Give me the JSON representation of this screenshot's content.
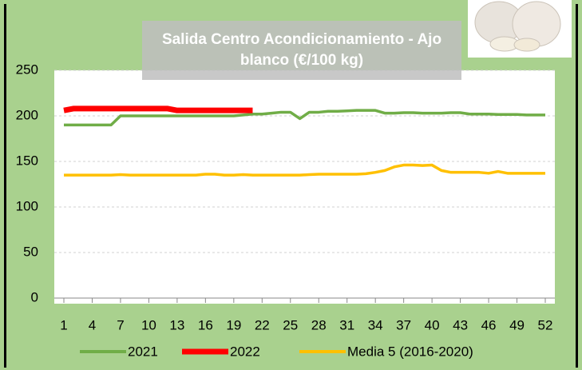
{
  "chart_data": {
    "type": "line",
    "title": "Salida Centro Acondicionamiento - Ajo blanco (€/100 kg)",
    "x": [
      1,
      2,
      3,
      4,
      5,
      6,
      7,
      8,
      9,
      10,
      11,
      12,
      13,
      14,
      15,
      16,
      17,
      18,
      19,
      20,
      21,
      22,
      23,
      24,
      25,
      26,
      27,
      28,
      29,
      30,
      31,
      32,
      33,
      34,
      35,
      36,
      37,
      38,
      39,
      40,
      41,
      42,
      43,
      44,
      45,
      46,
      47,
      48,
      49,
      50,
      51,
      52
    ],
    "xlim": [
      1,
      52
    ],
    "xticks": [
      1,
      4,
      7,
      10,
      13,
      16,
      19,
      22,
      25,
      28,
      31,
      34,
      37,
      40,
      43,
      46,
      49,
      52
    ],
    "ylim": [
      0,
      250
    ],
    "yticks": [
      0,
      50,
      100,
      150,
      200,
      250
    ],
    "grid": true,
    "series": [
      {
        "name": "2021",
        "color": "#70ad47",
        "values": [
          190,
          190,
          190,
          190,
          190,
          190,
          200,
          200,
          200,
          200,
          200,
          200,
          200,
          200,
          200,
          200,
          200,
          200,
          200,
          201,
          202,
          202,
          203,
          204,
          204,
          197,
          204,
          204,
          205,
          205,
          205.5,
          206,
          206,
          206,
          203,
          203,
          203.5,
          203.5,
          203,
          203,
          203,
          203.5,
          203.5,
          202,
          202,
          202,
          201.5,
          201.5,
          201.5,
          201,
          201,
          201
        ]
      },
      {
        "name": "2022",
        "color": "#ff0000",
        "values": [
          206,
          208,
          208,
          208,
          208,
          208,
          208,
          208,
          208,
          208,
          208,
          208,
          206,
          206,
          206,
          206,
          206,
          206,
          206,
          206,
          206,
          null,
          null,
          null,
          null,
          null,
          null,
          null,
          null,
          null,
          null,
          null,
          null,
          null,
          null,
          null,
          null,
          null,
          null,
          null,
          null,
          null,
          null,
          null,
          null,
          null,
          null,
          null,
          null,
          null,
          null,
          null
        ]
      },
      {
        "name": "Media 5 (2016-2020)",
        "color": "#ffc000",
        "values": [
          135,
          135,
          135,
          135,
          135,
          135,
          135.5,
          135,
          135,
          135,
          135,
          135,
          135,
          135,
          135,
          136,
          136,
          135,
          135,
          135.5,
          135,
          135,
          135,
          135,
          135,
          135,
          135.5,
          136,
          136,
          136,
          136,
          136,
          136.5,
          138,
          140,
          144,
          146,
          146,
          145.5,
          146,
          140,
          138,
          138,
          138,
          138,
          137,
          139,
          137,
          137,
          137,
          137,
          137
        ]
      }
    ]
  }
}
